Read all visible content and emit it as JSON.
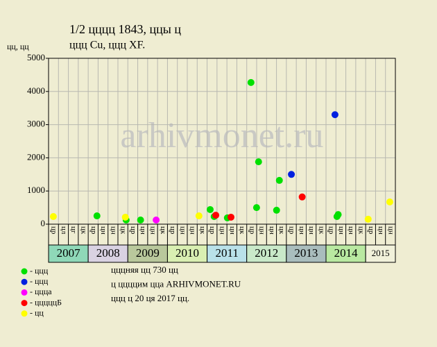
{
  "chart_data": {
    "type": "scatter",
    "title": "1/2 цццц 1843, ццы ц",
    "subtitle": "ццц Cu, ццц XF.",
    "y_label": "цц, цц",
    "watermark": "arhivmonet.ru",
    "xlim": [
      2007,
      2015.67
    ],
    "ylim": [
      0,
      5000
    ],
    "yticks": [
      0,
      1000,
      2000,
      3000,
      4000,
      5000
    ],
    "grid": true,
    "categories": [
      "цр",
      "цл",
      "цг",
      "цк",
      "цр",
      "цн",
      "цн",
      "цк",
      "цр",
      "цн",
      "цн",
      "цк",
      "цр",
      "цн",
      "цн",
      "цк",
      "цр",
      "цн",
      "цн",
      "цк",
      "цр",
      "цн",
      "цн",
      "цк",
      "цр",
      "цн",
      "цн",
      "цк",
      "цр",
      "цн",
      "цн",
      "цк",
      "цр",
      "цн",
      "цн"
    ],
    "years": [
      {
        "label": "2007",
        "color": "#8fd8b8"
      },
      {
        "label": "2008",
        "color": "#d9d2e2"
      },
      {
        "label": "2009",
        "color": "#b9c89c"
      },
      {
        "label": "2010",
        "color": "#d9efb2"
      },
      {
        "label": "2011",
        "color": "#b9e1e9"
      },
      {
        "label": "2012",
        "color": "#c9e9c9"
      },
      {
        "label": "2013",
        "color": "#a9bdbd"
      },
      {
        "label": "2014",
        "color": "#b9e9a1"
      },
      {
        "label": "2015",
        "color": "#f1f1da"
      }
    ],
    "series": [
      {
        "name": "- ццц",
        "color": "#00e000",
        "x": [
          2008.21,
          2008.94,
          2009.3,
          2011.04,
          2011.14,
          2011.47,
          2012.06,
          2012.25,
          2012.2,
          2012.7,
          2012.77,
          2014.21,
          2014.24
        ],
        "values": [
          250,
          125,
          125,
          440,
          230,
          190,
          4270,
          1880,
          500,
          420,
          1320,
          230,
          290
        ]
      },
      {
        "name": "- ццц",
        "color": "#0020e0",
        "x": [
          2014.16,
          2013.07
        ],
        "values": [
          3300,
          1500
        ]
      },
      {
        "name": "- ццца",
        "color": "#ff00ff",
        "x": [
          2009.69
        ],
        "values": [
          125
        ]
      },
      {
        "name": "- цццццБ",
        "color": "#ff0000",
        "x": [
          2011.18,
          2011.56,
          2013.34
        ],
        "values": [
          270,
          210,
          820
        ]
      },
      {
        "name": "- цц",
        "color": "#ffff00",
        "x": [
          2007.12,
          2008.92,
          2010.76,
          2014.99,
          2015.53
        ],
        "values": [
          230,
          210,
          250,
          150,
          670
        ]
      }
    ],
    "notes": [
      "цццняя цц 730 цц",
      "ц ццццим цца ARHIVMONET.RU",
      "ццц ц 20 ця 2017 цц."
    ]
  }
}
